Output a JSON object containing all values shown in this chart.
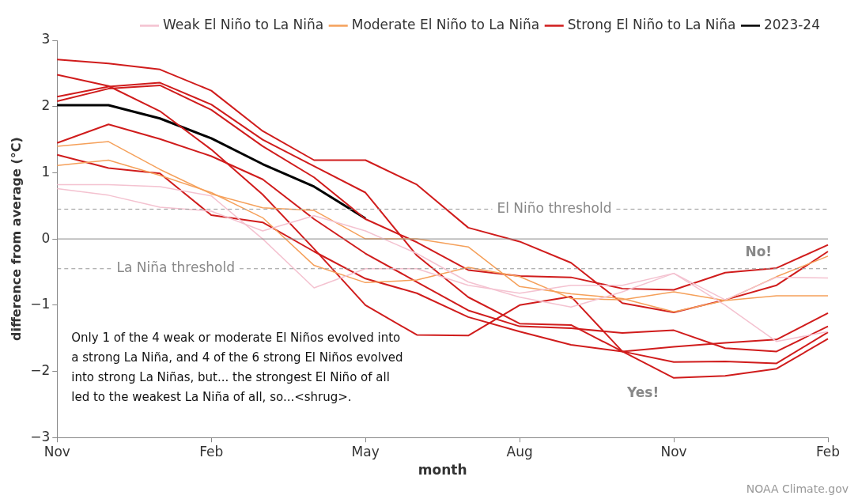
{
  "chart_data": {
    "type": "line",
    "xlabel": "month",
    "ylabel": "difference from average (°C)",
    "categories": [
      "Nov",
      null,
      null,
      "Feb",
      null,
      null,
      "May",
      null,
      null,
      "Aug",
      null,
      null,
      "Nov",
      null,
      null,
      "Feb"
    ],
    "ylim": [
      -3,
      3
    ],
    "yticks": [
      -3,
      -2,
      -1,
      0,
      1,
      2,
      3
    ],
    "grid": false,
    "legend": "top right",
    "marker": "none",
    "line_style": "solid",
    "series": [
      {
        "name": "Weak El Niño to La Niña",
        "color": "#f4c2d0",
        "values": [
          0.82,
          0.82,
          0.79,
          0.65,
          0.0,
          -0.74,
          -0.45,
          -0.45,
          -0.7,
          -0.82,
          -0.7,
          -0.7,
          -0.52,
          -0.92,
          -0.58,
          -0.59
        ]
      },
      {
        "color": "#f4c2d0",
        "values": [
          0.76,
          0.66,
          0.48,
          0.42,
          0.12,
          0.35,
          0.12,
          -0.22,
          -0.65,
          -0.88,
          -1.03,
          -0.8,
          -0.52,
          -1.0,
          -1.55,
          -1.4
        ]
      },
      {
        "name": "Moderate El Niño to La Niña",
        "color": "#f5a05a",
        "values": [
          1.4,
          1.47,
          1.05,
          0.68,
          0.47,
          0.43,
          0.0,
          0.0,
          -0.12,
          -0.72,
          -0.83,
          -0.9,
          -1.1,
          -0.93,
          -0.57,
          -0.26
        ]
      },
      {
        "color": "#f5a05a",
        "values": [
          1.11,
          1.19,
          0.96,
          0.7,
          0.32,
          -0.4,
          -0.66,
          -0.62,
          -0.43,
          -0.57,
          -0.9,
          -0.92,
          -0.8,
          -0.93,
          -0.86,
          -0.86
        ]
      },
      {
        "name": "Strong El Niño to La Niña",
        "color": "#d01c1c",
        "values": [
          2.71,
          2.65,
          2.56,
          2.24,
          1.63,
          1.19,
          1.19,
          0.82,
          0.17,
          -0.04,
          -0.36,
          -0.97,
          -1.11,
          -0.92,
          -0.7,
          -0.19
        ]
      },
      {
        "color": "#d01c1c",
        "values": [
          2.48,
          2.31,
          1.93,
          1.35,
          0.67,
          -0.15,
          -1.0,
          -1.45,
          -1.46,
          -1.0,
          -0.87,
          -1.7,
          -2.1,
          -2.07,
          -1.96,
          -1.51
        ]
      },
      {
        "color": "#d01c1c",
        "values": [
          2.15,
          2.3,
          2.36,
          2.03,
          1.5,
          1.1,
          0.7,
          -0.25,
          -0.88,
          -1.28,
          -1.3,
          -1.7,
          -1.63,
          -1.57,
          -1.52,
          -1.12
        ]
      },
      {
        "color": "#d01c1c",
        "values": [
          2.08,
          2.27,
          2.32,
          1.95,
          1.4,
          0.93,
          0.3,
          -0.05,
          -0.47,
          -0.56,
          -0.58,
          -0.75,
          -0.77,
          -0.51,
          -0.44,
          -0.09
        ]
      },
      {
        "color": "#d01c1c",
        "values": [
          1.45,
          1.73,
          1.51,
          1.25,
          0.9,
          0.3,
          -0.22,
          -0.65,
          -1.08,
          -1.32,
          -1.35,
          -1.42,
          -1.38,
          -1.65,
          -1.7,
          -1.32
        ]
      },
      {
        "color": "#d01c1c",
        "values": [
          1.27,
          1.07,
          0.99,
          0.36,
          0.25,
          -0.19,
          -0.6,
          -0.82,
          -1.18,
          -1.4,
          -1.6,
          -1.7,
          -1.86,
          -1.85,
          -1.88,
          -1.41
        ]
      },
      {
        "name": "2023-24",
        "color": "#000000",
        "values": [
          2.02,
          2.02,
          1.82,
          1.52,
          1.13,
          0.79,
          0.31,
          null,
          null,
          null,
          null,
          null,
          null,
          null,
          null,
          null
        ]
      }
    ],
    "ref_lines": [
      {
        "axis": "y",
        "value": 0.45,
        "label": "El Niño threshold",
        "color": "#999999",
        "line_style": "dashed"
      },
      {
        "axis": "y",
        "value": -0.45,
        "label": "La Niña threshold",
        "color": "#999999",
        "line_style": "dashed"
      },
      {
        "axis": "y",
        "value": 0,
        "color": "#888888",
        "line_style": "solid"
      }
    ],
    "annotations": [
      "Only 1 of the 4 weak or moderate El Niños evolved into a strong La Niña, and 4 of the 6 strong El Niños evolved into strong La Niñas, but... the strongest El Niño of all led to the weakest La Niña of all, so...<shrug>.",
      "No!",
      "Yes!",
      "NOAA Climate.gov"
    ]
  }
}
